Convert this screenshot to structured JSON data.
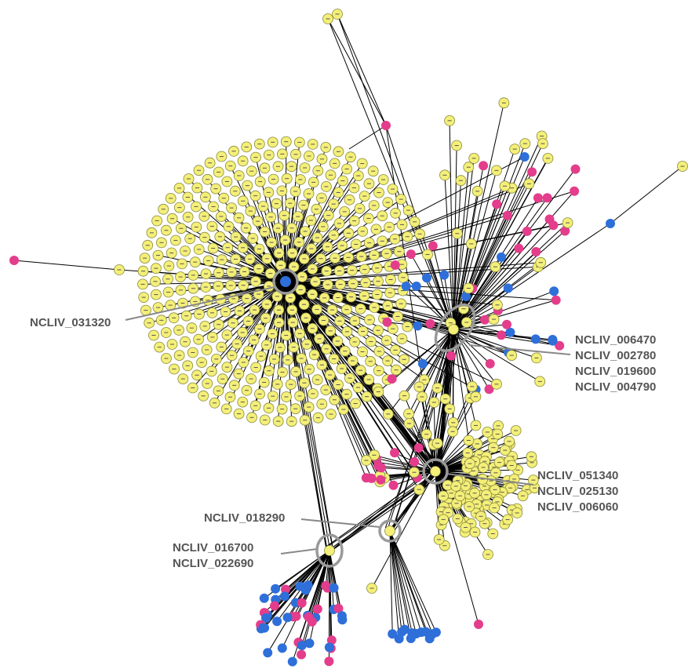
{
  "labels": [
    {
      "lines": [
        "NCLIV_031320"
      ]
    },
    {
      "lines": [
        "NCLIV_006470",
        "NCLIV_002780",
        "NCLIV_019600",
        "NCLIV_004790"
      ]
    },
    {
      "lines": [
        "NCLIV_051340",
        "NCLIV_025130",
        "NCLIV_006060"
      ]
    },
    {
      "lines": [
        "NCLIV_018290"
      ]
    },
    {
      "lines": [
        "NCLIV_016700",
        "NCLIV_022690"
      ]
    }
  ]
}
